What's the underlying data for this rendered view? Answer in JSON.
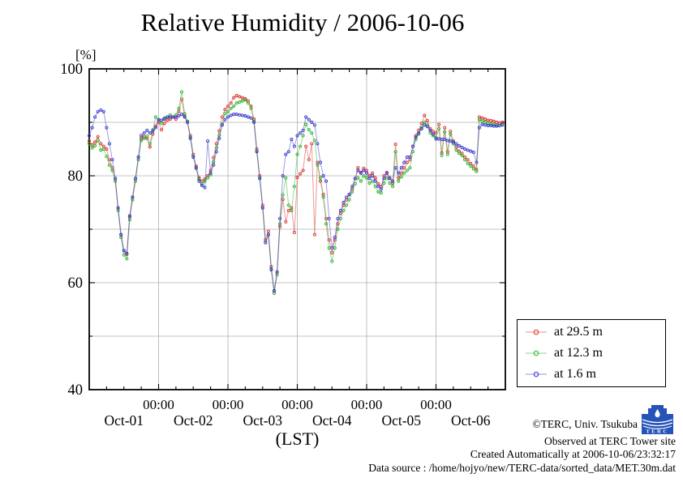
{
  "chart_data": {
    "type": "line",
    "title": "Relative Humidity / 2006-10-06",
    "y_unit_label": "[%]",
    "xlabel": "(LST)",
    "ylim": [
      40,
      100
    ],
    "y_major_ticks": [
      100,
      80,
      60,
      40
    ],
    "y_minor_ticks": [
      90,
      70,
      50
    ],
    "y_grid_values": [
      90,
      80,
      70,
      60,
      50
    ],
    "x_range_hours": [
      0,
      144
    ],
    "x_major_tick_hours": [
      24,
      48,
      72,
      96,
      120
    ],
    "x_minor_step_hours": 6,
    "x_major_tick_label": "00:00",
    "day_labels": [
      "Oct-01",
      "Oct-02",
      "Oct-03",
      "Oct-04",
      "Oct-05",
      "Oct-06"
    ],
    "sample_interval_hours": 1,
    "grid": true,
    "grid_color": "#b0b0b0",
    "legend_position": "outside-right",
    "series": [
      {
        "name": "at 29.5 m",
        "color": "#e03232",
        "values": [
          86.5,
          85.8,
          86.3,
          87.3,
          86.0,
          85.5,
          85.0,
          83.0,
          81.5,
          79.5,
          74.0,
          69.0,
          66.0,
          65.3,
          72.3,
          76.0,
          79.5,
          83.5,
          87.0,
          87.3,
          87.0,
          85.4,
          87.8,
          89.3,
          90.0,
          88.6,
          89.8,
          90.4,
          90.6,
          91.0,
          90.6,
          92.0,
          94.3,
          91.2,
          90.0,
          87.5,
          84.0,
          81.8,
          79.6,
          79.0,
          79.4,
          80.0,
          81.0,
          83.4,
          86.0,
          88.4,
          91.0,
          92.4,
          93.0,
          93.6,
          94.6,
          95.0,
          94.8,
          94.6,
          94.4,
          94.0,
          93.0,
          90.6,
          85.0,
          80.0,
          74.5,
          68.0,
          69.6,
          63.0,
          58.4,
          62.0,
          70.5,
          75.6,
          71.4,
          73.5,
          74.0,
          69.4,
          79.7,
          80.4,
          81.0,
          85.5,
          83.0,
          86.0,
          69.0,
          82.5,
          79.0,
          76.5,
          72.0,
          68.0,
          65.6,
          68.0,
          71.0,
          73.0,
          74.5,
          75.5,
          76.5,
          77.5,
          79.5,
          81.5,
          80.6,
          81.4,
          81.0,
          80.0,
          80.5,
          79.6,
          78.5,
          78.0,
          80.0,
          80.6,
          79.6,
          78.6,
          85.9,
          79.6,
          80.5,
          81.5,
          82.5,
          83.0,
          85.5,
          87.5,
          88.5,
          89.8,
          91.3,
          90.3,
          88.8,
          88.3,
          88.0,
          89.6,
          84.3,
          89.0,
          84.5,
          88.3,
          86.5,
          85.4,
          84.6,
          84.2,
          83.5,
          83.0,
          82.3,
          81.8,
          81.2,
          91.0,
          90.8,
          90.6,
          90.4,
          90.3,
          90.2,
          90.0,
          89.9,
          90.0
        ]
      },
      {
        "name": "at 12.3 m",
        "color": "#2db32d",
        "values": [
          86.0,
          85.2,
          85.6,
          86.6,
          84.8,
          85.0,
          83.6,
          82.0,
          81.0,
          79.0,
          73.5,
          68.5,
          65.2,
          64.5,
          71.8,
          75.5,
          79.0,
          83.0,
          86.6,
          87.0,
          87.4,
          86.0,
          88.6,
          91.0,
          90.4,
          89.8,
          90.8,
          91.0,
          91.4,
          91.0,
          91.4,
          92.6,
          95.7,
          91.6,
          90.2,
          87.2,
          83.6,
          81.4,
          79.4,
          78.5,
          79.0,
          79.6,
          80.2,
          82.6,
          85.2,
          87.6,
          89.6,
          91.6,
          92.0,
          92.6,
          93.0,
          93.6,
          93.8,
          94.0,
          94.2,
          93.6,
          92.6,
          90.2,
          84.6,
          79.6,
          74.0,
          67.5,
          69.0,
          62.4,
          58.0,
          61.5,
          71.0,
          76.4,
          79.6,
          74.5,
          73.5,
          78.0,
          84.0,
          85.5,
          87.5,
          89.6,
          88.6,
          88.0,
          86.6,
          82.0,
          79.6,
          76.0,
          71.0,
          66.5,
          64.0,
          66.5,
          70.0,
          72.0,
          73.5,
          74.5,
          75.5,
          77.0,
          78.5,
          79.6,
          79.0,
          80.0,
          79.6,
          78.6,
          79.0,
          78.0,
          77.0,
          76.8,
          78.6,
          79.6,
          78.6,
          78.0,
          84.5,
          79.0,
          79.8,
          80.5,
          81.0,
          81.5,
          84.5,
          86.8,
          87.8,
          89.0,
          90.0,
          89.5,
          88.0,
          87.5,
          87.2,
          88.8,
          83.8,
          88.2,
          84.0,
          87.8,
          86.0,
          84.8,
          84.2,
          83.8,
          83.0,
          82.3,
          81.8,
          81.3,
          80.8,
          90.5,
          90.2,
          90.0,
          89.8,
          89.7,
          89.6,
          89.5,
          89.4,
          89.5
        ]
      },
      {
        "name": "at 1.6 m",
        "color": "#3a3ad1",
        "values": [
          87.5,
          89.0,
          91.0,
          92.0,
          92.3,
          92.0,
          89.0,
          86.0,
          83.0,
          79.5,
          74.0,
          69.0,
          66.0,
          65.5,
          72.5,
          76.0,
          79.5,
          83.5,
          87.5,
          88.0,
          88.5,
          88.0,
          88.4,
          89.0,
          90.5,
          90.4,
          90.6,
          91.0,
          91.0,
          91.0,
          91.0,
          91.2,
          91.5,
          91.0,
          90.0,
          87.0,
          83.5,
          81.5,
          79.0,
          78.2,
          77.8,
          86.5,
          80.5,
          82.0,
          84.5,
          87.0,
          89.5,
          90.5,
          91.0,
          91.3,
          91.5,
          91.5,
          91.4,
          91.3,
          91.2,
          91.0,
          90.8,
          90.0,
          84.5,
          79.5,
          74.0,
          67.5,
          69.0,
          62.5,
          58.5,
          62.0,
          72.0,
          80.0,
          84.0,
          84.5,
          86.8,
          85.5,
          87.5,
          88.0,
          88.5,
          91.0,
          90.5,
          90.0,
          89.5,
          86.0,
          82.5,
          80.0,
          79.0,
          72.0,
          66.5,
          68.5,
          72.0,
          73.5,
          75.0,
          76.0,
          76.5,
          78.0,
          79.5,
          81.0,
          80.5,
          81.0,
          80.5,
          79.5,
          80.0,
          79.0,
          78.0,
          77.5,
          79.5,
          80.5,
          79.5,
          79.0,
          81.5,
          80.5,
          81.5,
          82.5,
          83.5,
          83.5,
          85.5,
          87.2,
          88.0,
          88.8,
          89.5,
          89.2,
          88.5,
          87.8,
          86.9,
          86.9,
          86.8,
          86.8,
          86.6,
          86.5,
          86.3,
          86.0,
          85.6,
          85.3,
          85.0,
          84.8,
          84.6,
          84.4,
          82.5,
          89.0,
          89.6,
          89.5,
          89.4,
          89.4,
          89.3,
          89.3,
          89.4,
          89.6
        ]
      }
    ]
  },
  "footer": {
    "copyright": "©TERC, Univ. Tsukuba",
    "observed": "Observed at TERC Tower site",
    "created": "Created Automatically at 2006-10-06/23:32:17",
    "data_source": "Data source : /home/hojyo/new/TERC-data/sorted_data/MET.30m.dat",
    "logo_text": "TERC",
    "logo_color": "#2653b8"
  }
}
